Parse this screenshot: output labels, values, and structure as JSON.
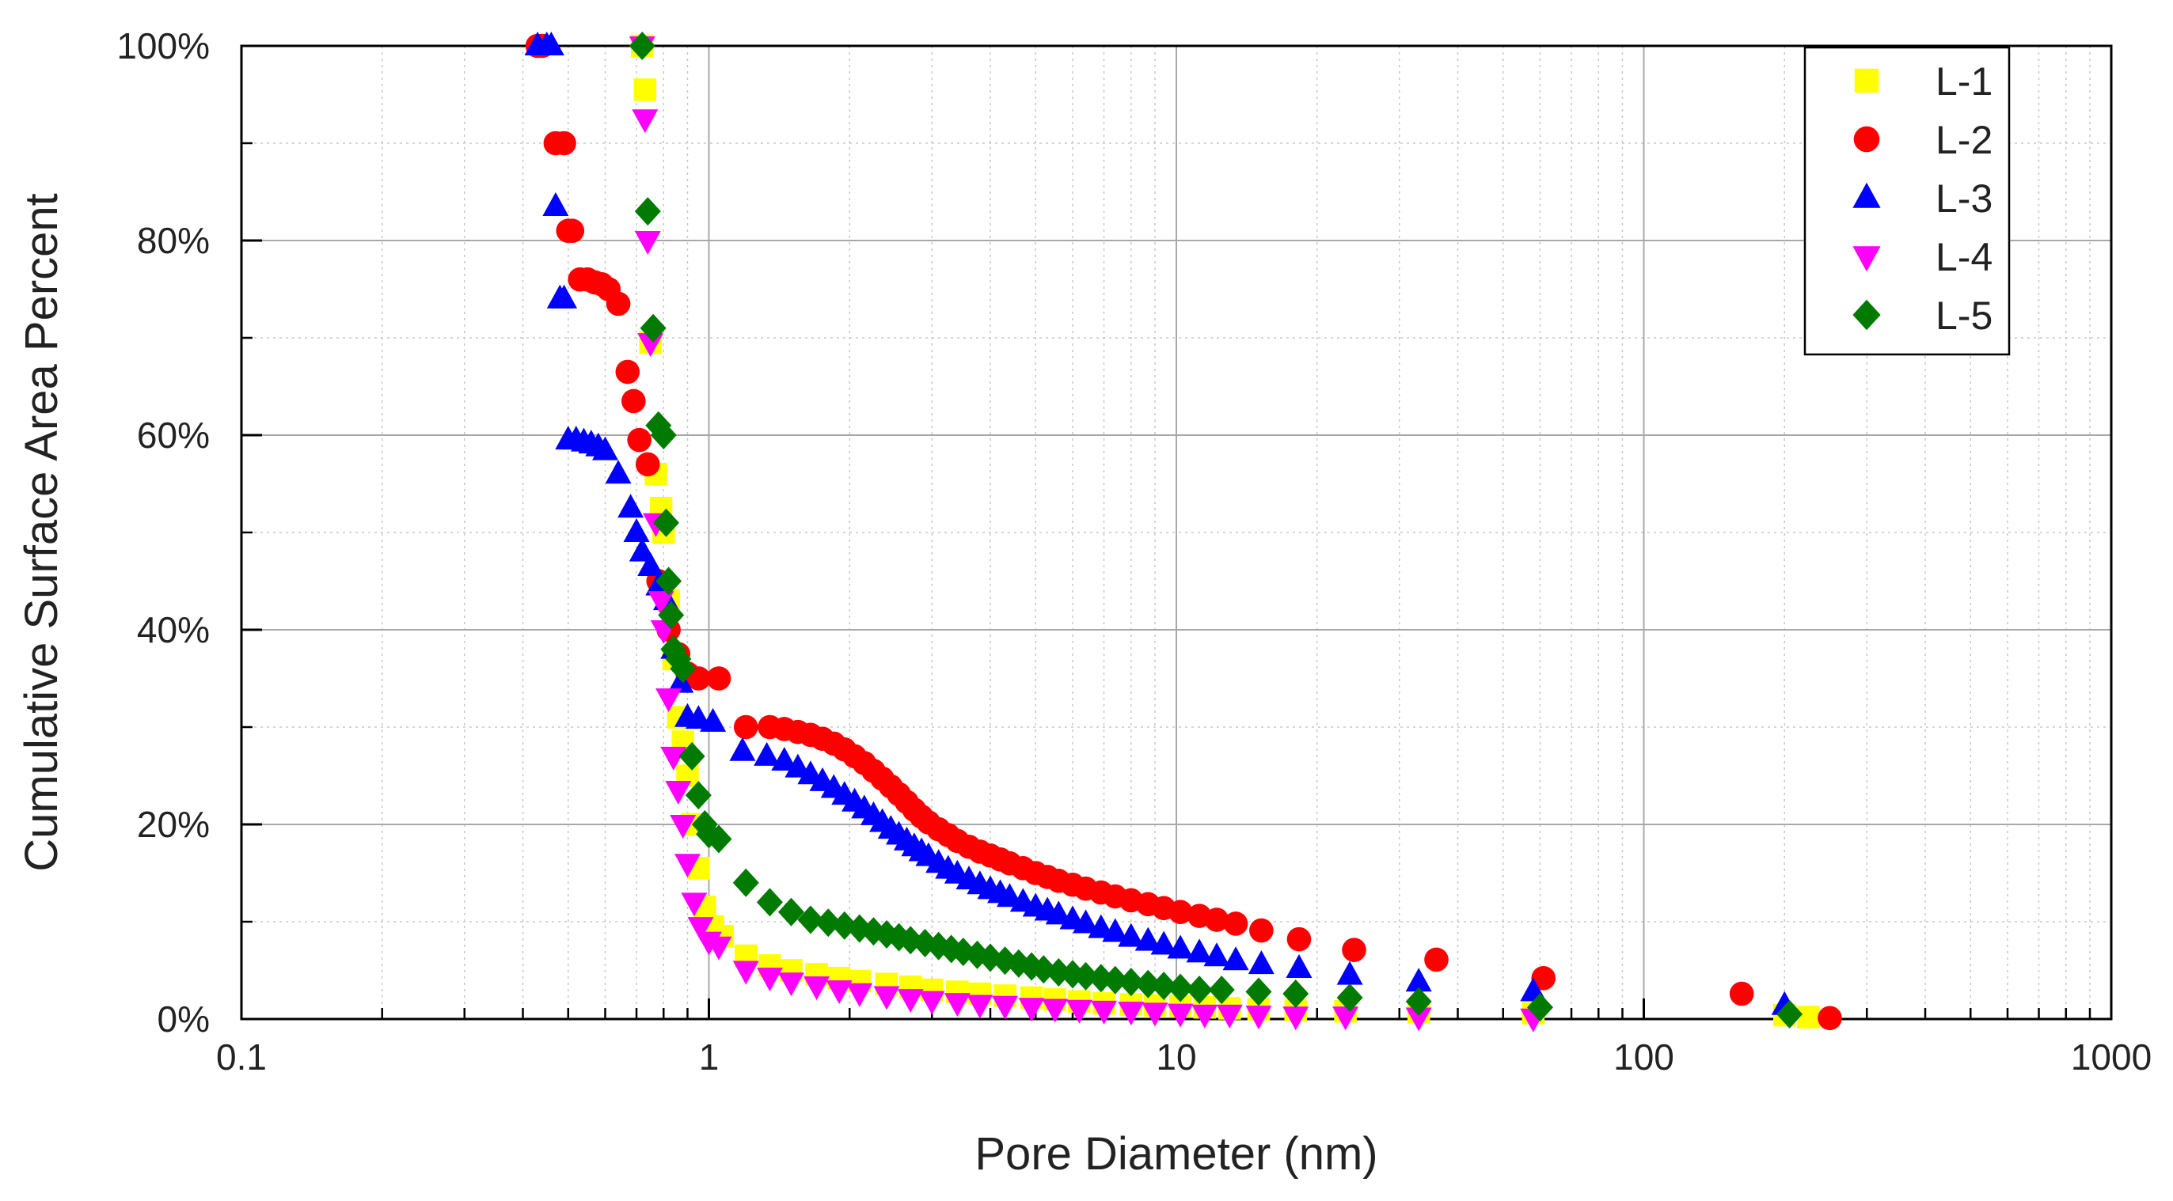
{
  "chart_data": {
    "type": "scatter",
    "title": "",
    "xlabel": "Pore Diameter (nm)",
    "ylabel": "Cumulative Surface Area Percent",
    "xscale": "log",
    "xlim": [
      0.1,
      1000
    ],
    "ylim": [
      0,
      100
    ],
    "x_ticks": [
      0.1,
      1,
      10,
      100,
      1000
    ],
    "x_tick_labels": [
      "0.1",
      "1",
      "10",
      "100",
      "1000"
    ],
    "y_ticks": [
      0,
      20,
      40,
      60,
      80,
      100
    ],
    "y_tick_labels": [
      "0%",
      "20%",
      "40%",
      "60%",
      "80%",
      "100%"
    ],
    "grid": "major and minor",
    "legend_position": "top-right",
    "series": [
      {
        "name": "L-1",
        "marker": "square",
        "color": "#ffff00",
        "x": [
          0.72,
          0.73,
          0.75,
          0.77,
          0.79,
          0.8,
          0.82,
          0.84,
          0.86,
          0.88,
          0.9,
          0.92,
          0.95,
          0.98,
          1.02,
          1.07,
          1.2,
          1.35,
          1.5,
          1.7,
          1.9,
          2.1,
          2.4,
          2.7,
          3.0,
          3.4,
          3.8,
          4.3,
          4.9,
          5.5,
          6.2,
          7.0,
          8.0,
          9.0,
          10.2,
          11.5,
          13,
          15,
          18,
          23,
          33,
          58,
          200,
          225
        ],
        "y": [
          100,
          95.5,
          69.5,
          56,
          52.5,
          50,
          43,
          37,
          31,
          28.5,
          25,
          20,
          15.5,
          11.5,
          9.5,
          8.5,
          6.5,
          5.5,
          5.0,
          4.6,
          4.2,
          3.9,
          3.6,
          3.3,
          3.0,
          2.8,
          2.6,
          2.4,
          2.2,
          2.0,
          1.8,
          1.6,
          1.5,
          1.4,
          1.3,
          1.2,
          1.1,
          1.0,
          0.9,
          0.8,
          0.7,
          0.6,
          0.4,
          0.2
        ]
      },
      {
        "name": "L-2",
        "marker": "circle",
        "color": "#ff0000",
        "x": [
          0.43,
          0.44,
          0.47,
          0.49,
          0.5,
          0.51,
          0.53,
          0.55,
          0.57,
          0.59,
          0.61,
          0.64,
          0.67,
          0.69,
          0.71,
          0.74,
          0.78,
          0.82,
          0.86,
          0.9,
          0.95,
          1.05,
          1.2,
          1.35,
          1.45,
          1.55,
          1.65,
          1.75,
          1.85,
          1.95,
          2.05,
          2.15,
          2.25,
          2.35,
          2.45,
          2.55,
          2.65,
          2.75,
          2.85,
          2.95,
          3.1,
          3.25,
          3.4,
          3.6,
          3.8,
          4.0,
          4.2,
          4.4,
          4.7,
          5.0,
          5.3,
          5.6,
          6.0,
          6.4,
          6.9,
          7.4,
          8.0,
          8.7,
          9.4,
          10.2,
          11.2,
          12.2,
          13.4,
          15.2,
          18.3,
          24,
          36,
          61,
          162,
          250
        ],
        "y": [
          100,
          100,
          90,
          90,
          81,
          81,
          76,
          76,
          75.7,
          75.5,
          75,
          73.5,
          66.5,
          63.5,
          59.5,
          57,
          45,
          40,
          37.5,
          35.5,
          35,
          35,
          30,
          30,
          29.8,
          29.5,
          29.2,
          28.8,
          28.3,
          27.7,
          27,
          26.3,
          25.5,
          24.7,
          23.9,
          23.1,
          22.3,
          21.5,
          20.8,
          20.2,
          19.5,
          18.9,
          18.3,
          17.7,
          17.2,
          16.8,
          16.4,
          16.0,
          15.5,
          15.0,
          14.6,
          14.2,
          13.8,
          13.4,
          13.0,
          12.6,
          12.2,
          11.8,
          11.4,
          11.0,
          10.6,
          10.2,
          9.8,
          9.1,
          8.2,
          7.1,
          6.1,
          4.2,
          2.6,
          0.1
        ]
      },
      {
        "name": "L-3",
        "marker": "triangle-up",
        "color": "#0000ff",
        "x": [
          0.43,
          0.45,
          0.46,
          0.47,
          0.48,
          0.49,
          0.5,
          0.52,
          0.54,
          0.56,
          0.58,
          0.6,
          0.64,
          0.68,
          0.7,
          0.72,
          0.75,
          0.78,
          0.81,
          0.84,
          0.87,
          0.9,
          0.95,
          1.02,
          1.18,
          1.33,
          1.45,
          1.55,
          1.65,
          1.75,
          1.85,
          1.95,
          2.05,
          2.15,
          2.25,
          2.35,
          2.45,
          2.55,
          2.65,
          2.75,
          2.85,
          2.95,
          3.1,
          3.25,
          3.4,
          3.6,
          3.8,
          4.0,
          4.2,
          4.4,
          4.7,
          5.0,
          5.3,
          5.6,
          6.0,
          6.4,
          6.9,
          7.4,
          8.0,
          8.7,
          9.4,
          10.2,
          11.2,
          12.2,
          13.4,
          15.2,
          18.3,
          23.5,
          33,
          58,
          200
        ],
        "y": [
          100,
          100,
          100,
          83.5,
          74,
          74,
          59.5,
          59.5,
          59.3,
          59.1,
          58.8,
          58.4,
          56,
          52.5,
          50,
          48,
          46.5,
          44.5,
          43,
          38,
          34.5,
          31,
          30.8,
          30.5,
          27.5,
          27,
          26.5,
          25.8,
          25.1,
          24.4,
          23.7,
          23.0,
          22.3,
          21.6,
          20.9,
          20.2,
          19.5,
          18.9,
          18.3,
          17.7,
          17.2,
          16.7,
          16.0,
          15.4,
          14.9,
          14.3,
          13.8,
          13.3,
          12.9,
          12.5,
          12.0,
          11.5,
          11.1,
          10.7,
          10.2,
          9.8,
          9.3,
          8.9,
          8.4,
          8.0,
          7.6,
          7.2,
          6.8,
          6.4,
          6.0,
          5.6,
          5.2,
          4.5,
          3.8,
          2.8,
          1.4
        ]
      },
      {
        "name": "L-4",
        "marker": "triangle-down",
        "color": "#ff00ff",
        "x": [
          0.72,
          0.73,
          0.74,
          0.75,
          0.77,
          0.79,
          0.8,
          0.82,
          0.84,
          0.86,
          0.88,
          0.9,
          0.93,
          0.96,
          1.0,
          1.05,
          1.2,
          1.35,
          1.5,
          1.7,
          1.9,
          2.1,
          2.4,
          2.7,
          3.0,
          3.4,
          3.8,
          4.3,
          4.9,
          5.5,
          6.2,
          7.0,
          8.0,
          9.0,
          10.2,
          11.5,
          13,
          15,
          18,
          23,
          33,
          58
        ],
        "y": [
          100,
          92.5,
          80,
          69.5,
          51,
          43,
          40,
          33,
          27,
          23.5,
          20,
          16,
          12,
          9.5,
          8,
          7.5,
          5,
          4.3,
          3.8,
          3.4,
          3.0,
          2.7,
          2.4,
          2.1,
          1.9,
          1.7,
          1.5,
          1.4,
          1.2,
          1.1,
          1.0,
          0.9,
          0.8,
          0.7,
          0.6,
          0.5,
          0.5,
          0.4,
          0.3,
          0.3,
          0.2,
          0.1
        ]
      },
      {
        "name": "L-5",
        "marker": "diamond",
        "color": "#007a00",
        "x": [
          0.72,
          0.74,
          0.76,
          0.78,
          0.8,
          0.81,
          0.82,
          0.83,
          0.84,
          0.86,
          0.88,
          0.92,
          0.95,
          0.98,
          1.0,
          1.05,
          1.2,
          1.35,
          1.5,
          1.65,
          1.8,
          1.95,
          2.1,
          2.25,
          2.4,
          2.55,
          2.7,
          2.9,
          3.1,
          3.3,
          3.5,
          3.75,
          4.0,
          4.3,
          4.6,
          4.9,
          5.2,
          5.6,
          6.0,
          6.4,
          6.9,
          7.4,
          8.0,
          8.7,
          9.4,
          10.2,
          11.2,
          12.5,
          15,
          18,
          23.5,
          33,
          60,
          205
        ],
        "y": [
          100,
          83,
          71,
          61,
          60,
          51,
          45,
          41.5,
          38,
          37,
          36,
          27,
          23,
          20,
          19,
          18.5,
          14,
          12,
          11,
          10.2,
          9.9,
          9.6,
          9.3,
          9.0,
          8.7,
          8.4,
          8.1,
          7.8,
          7.5,
          7.2,
          6.9,
          6.6,
          6.3,
          6.0,
          5.7,
          5.4,
          5.1,
          4.8,
          4.6,
          4.4,
          4.2,
          4.0,
          3.8,
          3.6,
          3.4,
          3.2,
          3.0,
          3.0,
          2.8,
          2.6,
          2.2,
          1.8,
          1.2,
          0.5
        ]
      }
    ]
  }
}
